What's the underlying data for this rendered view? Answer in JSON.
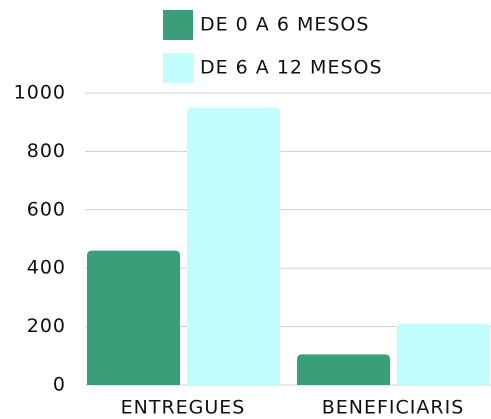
{
  "chart_data": {
    "type": "bar",
    "categories": [
      "ENTREGUES",
      "BENEFICIARIS"
    ],
    "series": [
      {
        "name": "DE 0 A 6 MESOS",
        "color": "#3a9e78",
        "values": [
          460,
          105
        ]
      },
      {
        "name": "DE 6 A 12 MESOS",
        "color": "#c2fcfc",
        "values": [
          950,
          210
        ]
      }
    ],
    "ylim": [
      0,
      1000
    ],
    "yticks": [
      0,
      200,
      400,
      600,
      800,
      1000
    ],
    "grid": true
  }
}
